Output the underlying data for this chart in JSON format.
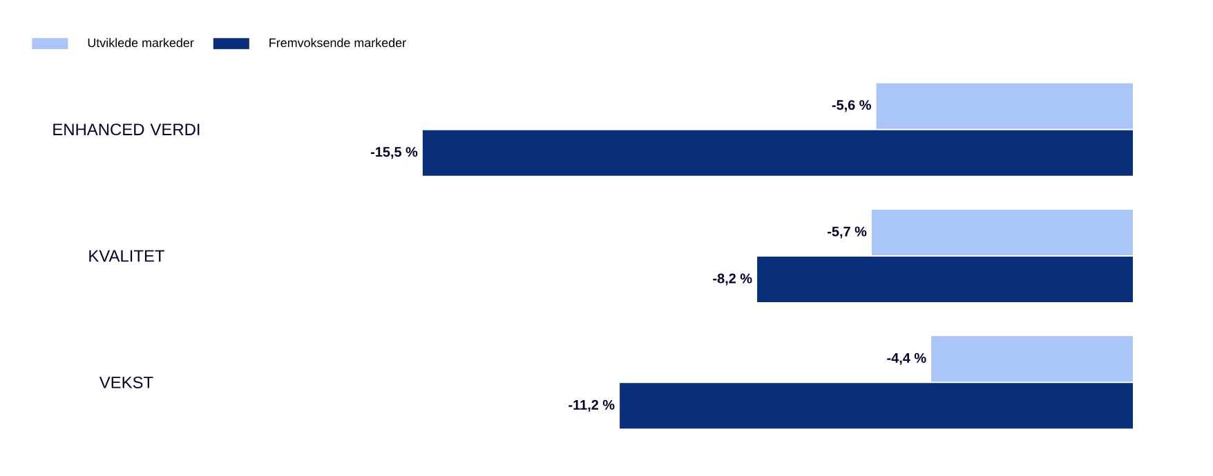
{
  "chart_data": {
    "type": "bar",
    "orientation": "horizontal",
    "categories": [
      "ENHANCED VERDI",
      "KVALITET",
      "VEKST"
    ],
    "series": [
      {
        "name": "Utviklede markeder",
        "color": "#a9c4f6",
        "values": [
          -5.6,
          -5.7,
          -4.4
        ],
        "value_labels": [
          "-5,6 %",
          "-5,7 %",
          "-4,4 %"
        ]
      },
      {
        "name": "Fremvoksende markeder",
        "color": "#0a2f7a",
        "values": [
          -15.5,
          -8.2,
          -11.2
        ],
        "value_labels": [
          "-15,5 %",
          "-8,2 %",
          "-11,2 %"
        ]
      }
    ],
    "legend": "top left",
    "tick_labels": "y"
  }
}
